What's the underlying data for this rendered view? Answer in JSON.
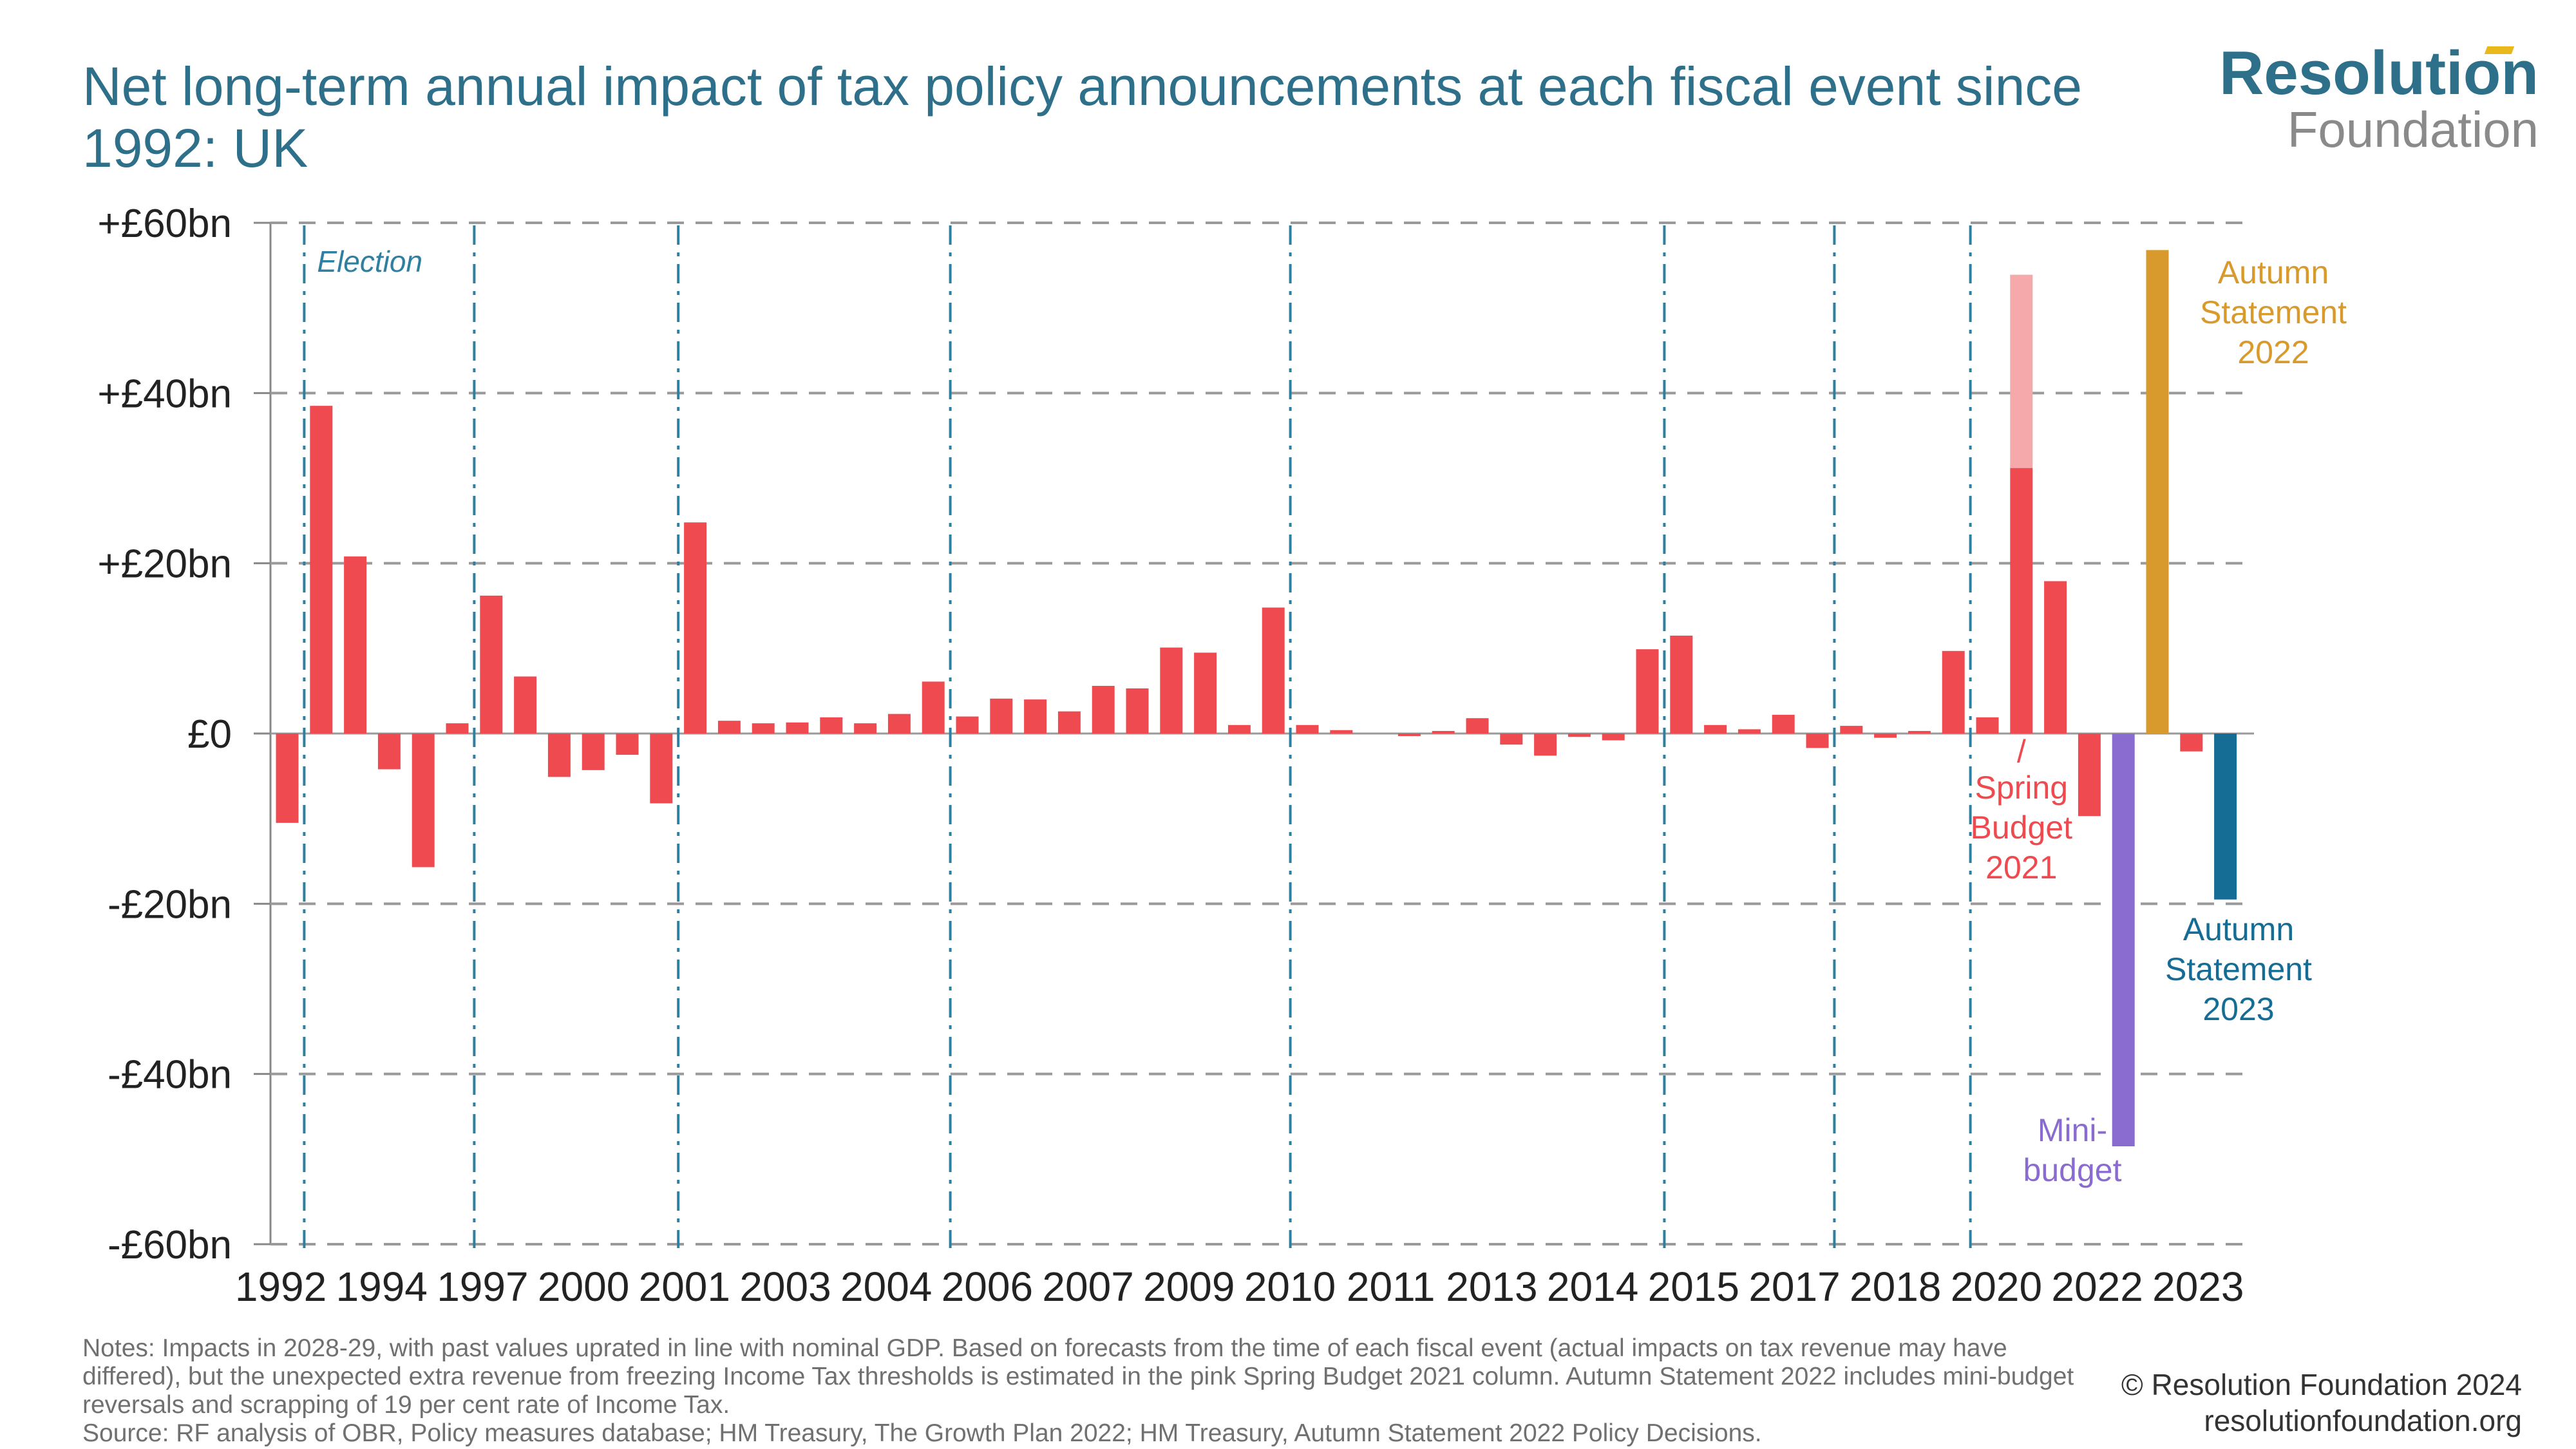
{
  "title": "Net long-term annual impact of tax policy announcements at each fiscal event since 1992: UK",
  "logo": {
    "top": "Resolution",
    "bottom": "Foundation"
  },
  "notes": {
    "text": "Notes: Impacts in 2028-29, with past values uprated in line with nominal GDP. Based on forecasts from the time of each fiscal event (actual impacts on tax revenue may have differed), but the unexpected extra revenue from freezing Income Tax thresholds is estimated in the pink Spring Budget 2021 column. Autumn Statement 2022 includes mini-budget reversals and scrapping of 19 per cent rate of Income Tax.",
    "source": "Source: RF analysis of OBR, Policy measures database; HM Treasury, The Growth Plan 2022; HM Treasury, Autumn Statement 2022 Policy Decisions."
  },
  "credit": {
    "line1": "© Resolution Foundation 2024",
    "line2": "resolutionfoundation.org"
  },
  "colors": {
    "bar": "#ef4a4f",
    "threshold_freeze": "#f5a9ab",
    "mini_budget": "#8a6bcf",
    "autumn_2022": "#d89a2c",
    "autumn_2023": "#156c94",
    "election_line": "#2e7fa0",
    "grid": "#9a9a9a",
    "title": "#2e6f8a"
  },
  "chart_data": {
    "type": "bar",
    "ylim": [
      -60,
      60
    ],
    "yticks": [
      60,
      40,
      20,
      0,
      -20,
      -40,
      -60
    ],
    "ytick_labels": [
      "+£60bn",
      "+£40bn",
      "+£20bn",
      "£0",
      "-£20bn",
      "-£40bn",
      "-£60bn"
    ],
    "grid": true,
    "x_tick_labels": [
      "1992",
      "1994",
      "1997",
      "2000",
      "2001",
      "2003",
      "2004",
      "2006",
      "2007",
      "2009",
      "2010",
      "2011",
      "2013",
      "2014",
      "2015",
      "2017",
      "2018",
      "2020",
      "2022",
      "2023"
    ],
    "values": [
      -10.5,
      38.5,
      20.8,
      -4.2,
      -15.7,
      1.2,
      16.2,
      6.7,
      -5.1,
      -4.3,
      -2.5,
      -8.2,
      24.8,
      1.5,
      1.2,
      1.3,
      1.9,
      1.2,
      2.3,
      6.1,
      2.0,
      4.1,
      4.0,
      2.6,
      5.6,
      5.3,
      10.1,
      9.5,
      1.0,
      14.8,
      1.0,
      0.4,
      0.0,
      -0.3,
      0.3,
      1.8,
      -1.3,
      -2.6,
      -0.4,
      -0.8,
      9.9,
      11.5,
      1.0,
      0.5,
      2.2,
      -1.7,
      0.9,
      -0.5,
      0.3,
      9.7,
      1.9,
      31.2,
      17.9,
      -9.7,
      -48.5,
      56.8,
      -2.1,
      -19.5
    ],
    "stacked_extra": {
      "index": 51,
      "value": 22.7,
      "note": "unexpected extra revenue from freezing Income Tax thresholds"
    },
    "highlight": [
      {
        "index": 54,
        "color_key": "mini_budget",
        "label": "Mini-budget"
      },
      {
        "index": 55,
        "color_key": "autumn_2022",
        "label": "Autumn Statement 2022"
      },
      {
        "index": 57,
        "color_key": "autumn_2023",
        "label": "Autumn Statement 2023"
      }
    ],
    "election_after_index": [
      0,
      5,
      11,
      19,
      29,
      40,
      45,
      49
    ],
    "election_label": "Election",
    "annotations": {
      "spring_budget": {
        "index": 51,
        "slash": "/",
        "lines": [
          "Spring",
          "Budget",
          "2021"
        ]
      },
      "autumn_2022": [
        "Autumn",
        "Statement",
        "2022"
      ],
      "autumn_2023": [
        "Autumn",
        "Statement",
        "2023"
      ],
      "mini_budget": [
        "Mini-",
        "budget"
      ]
    }
  }
}
